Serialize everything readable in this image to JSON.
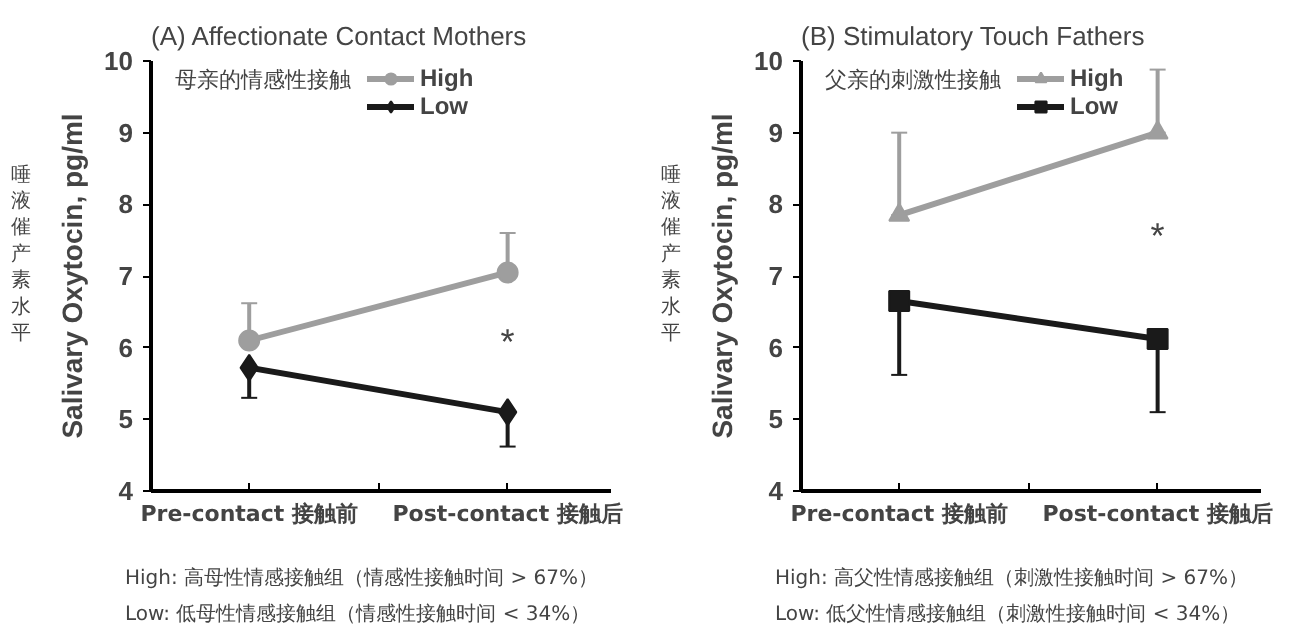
{
  "chart_data": [
    {
      "type": "line",
      "title": "(A) Affectionate Contact Mothers",
      "subtitle": "母亲的情感性接触",
      "ylabel": "Salivary Oxytocin, pg/ml",
      "categories": [
        "Pre-contact 接触前",
        "Post-contact 接触后"
      ],
      "series": [
        {
          "name": "High",
          "color": "#9e9e9e",
          "marker": "circle",
          "values": [
            6.1,
            7.05
          ],
          "errors": [
            [
              6.1,
              6.62
            ],
            [
              7.05,
              7.6
            ]
          ]
        },
        {
          "name": "Low",
          "color": "#1a1a1a",
          "marker": "diamond",
          "values": [
            5.72,
            5.1
          ],
          "errors": [
            [
              5.3,
              5.72
            ],
            [
              4.62,
              5.1
            ]
          ]
        }
      ],
      "ylim": [
        4,
        10
      ],
      "yticks": [
        4,
        5,
        6,
        7,
        8,
        9,
        10
      ],
      "grid": false,
      "legend": "top right",
      "annotations": [
        "唾液催产素水平",
        "*",
        "High: 高母性情感接触组（情感性接触时间 > 67%）",
        "Low: 低母性情感接触组（情感性接触时间 < 34%）"
      ]
    },
    {
      "type": "line",
      "title": "(B) Stimulatory Touch Fathers",
      "subtitle": "父亲的刺激性接触",
      "ylabel": "Salivary Oxytocin, pg/ml",
      "categories": [
        "Pre-contact 接触前",
        "Post-contact 接触后"
      ],
      "series": [
        {
          "name": "High",
          "color": "#9e9e9e",
          "marker": "triangle",
          "values": [
            7.85,
            9.0
          ],
          "errors": [
            [
              7.85,
              9.0
            ],
            [
              9.0,
              9.88
            ]
          ]
        },
        {
          "name": "Low",
          "color": "#1a1a1a",
          "marker": "square",
          "values": [
            6.65,
            6.12
          ],
          "errors": [
            [
              5.62,
              6.65
            ],
            [
              5.1,
              6.12
            ]
          ]
        }
      ],
      "ylim": [
        4,
        10
      ],
      "yticks": [
        4,
        5,
        6,
        7,
        8,
        9,
        10
      ],
      "grid": false,
      "legend": "top right",
      "annotations": [
        "唾液催产素水平",
        "*",
        "High: 高父性情感接触组（刺激性接触时间 > 67%）",
        "Low: 低父性情感接触组（刺激性接触时间 < 34%）"
      ]
    }
  ]
}
